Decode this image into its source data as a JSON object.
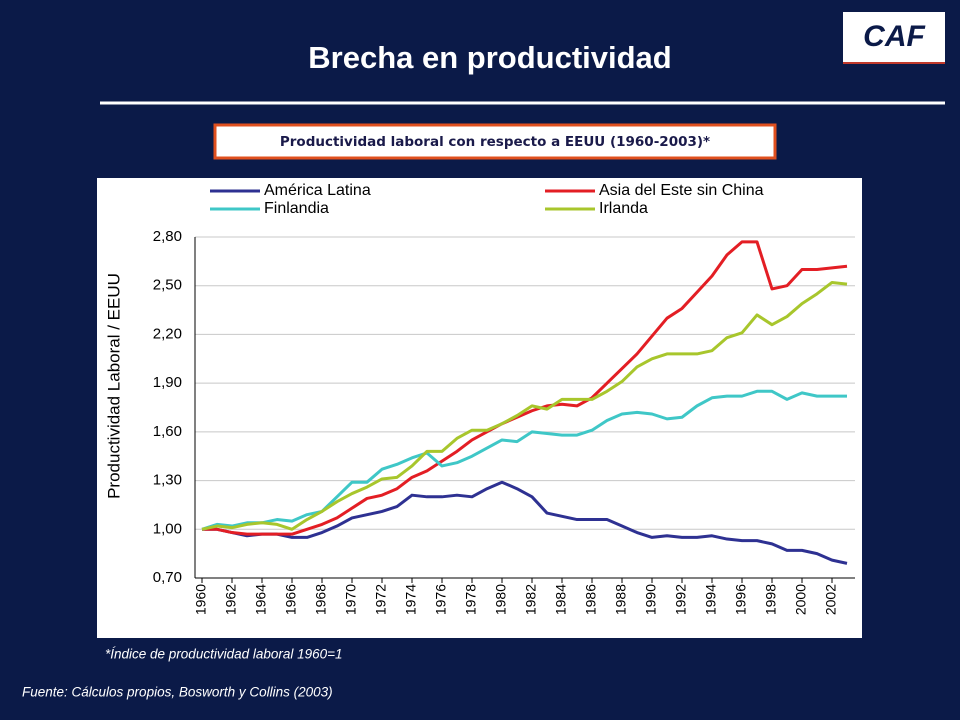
{
  "slide": {
    "title": "Brecha en productividad",
    "logo": "CAF",
    "note": "*Índice de productividad laboral 1960=1",
    "source": "Fuente: Cálculos propios, Bosworth y Collins (2003)"
  },
  "chart_data": {
    "type": "line",
    "title": "Productividad laboral con respecto a EEUU (1960-2003)*",
    "y_label": "Productividad Laboral / EEUU",
    "x": [
      1960,
      1961,
      1962,
      1963,
      1964,
      1965,
      1966,
      1967,
      1968,
      1969,
      1970,
      1971,
      1972,
      1973,
      1974,
      1975,
      1976,
      1977,
      1978,
      1979,
      1980,
      1981,
      1982,
      1983,
      1984,
      1985,
      1986,
      1987,
      1988,
      1989,
      1990,
      1991,
      1992,
      1993,
      1994,
      1995,
      1996,
      1997,
      1998,
      1999,
      2000,
      2001,
      2002,
      2003
    ],
    "xlim": [
      1960,
      2003
    ],
    "xticks": [
      1960,
      1962,
      1964,
      1966,
      1968,
      1970,
      1972,
      1974,
      1976,
      1978,
      1980,
      1982,
      1984,
      1986,
      1988,
      1990,
      1992,
      1994,
      1996,
      1998,
      2000,
      2002
    ],
    "ylim": [
      0.7,
      2.8
    ],
    "yticks": [
      {
        "value": 0.7,
        "label": "0,70"
      },
      {
        "value": 1.0,
        "label": "1,00"
      },
      {
        "value": 1.3,
        "label": "1,30"
      },
      {
        "value": 1.6,
        "label": "1,60"
      },
      {
        "value": 1.9,
        "label": "1,90"
      },
      {
        "value": 2.2,
        "label": "2,20"
      },
      {
        "value": 2.5,
        "label": "2,50"
      },
      {
        "value": 2.8,
        "label": "2,80"
      }
    ],
    "grid": true,
    "legend": "top",
    "series": [
      {
        "name": "América Latina",
        "color": "#2e3192",
        "values": [
          1.0,
          1.0,
          0.98,
          0.96,
          0.97,
          0.97,
          0.95,
          0.95,
          0.98,
          1.02,
          1.07,
          1.09,
          1.11,
          1.14,
          1.21,
          1.2,
          1.2,
          1.21,
          1.2,
          1.25,
          1.29,
          1.25,
          1.2,
          1.1,
          1.08,
          1.06,
          1.06,
          1.06,
          1.02,
          0.98,
          0.95,
          0.96,
          0.95,
          0.95,
          0.96,
          0.94,
          0.93,
          0.93,
          0.91,
          0.87,
          0.87,
          0.85,
          0.81,
          0.79
        ]
      },
      {
        "name": "Asia del Este sin China",
        "color": "#e31e24",
        "values": [
          1.0,
          1.0,
          0.98,
          0.97,
          0.97,
          0.97,
          0.97,
          1.0,
          1.03,
          1.07,
          1.13,
          1.19,
          1.21,
          1.25,
          1.32,
          1.36,
          1.42,
          1.48,
          1.55,
          1.6,
          1.65,
          1.69,
          1.73,
          1.76,
          1.77,
          1.76,
          1.81,
          1.9,
          1.99,
          2.08,
          2.19,
          2.3,
          2.36,
          2.46,
          2.56,
          2.69,
          2.77,
          2.77,
          2.48,
          2.5,
          2.6,
          2.6,
          2.61,
          2.62
        ]
      },
      {
        "name": "Finlandia",
        "color": "#3fc7c7",
        "values": [
          1.0,
          1.03,
          1.02,
          1.04,
          1.04,
          1.06,
          1.05,
          1.09,
          1.11,
          1.2,
          1.29,
          1.29,
          1.37,
          1.4,
          1.44,
          1.47,
          1.39,
          1.41,
          1.45,
          1.5,
          1.55,
          1.54,
          1.6,
          1.59,
          1.58,
          1.58,
          1.61,
          1.67,
          1.71,
          1.72,
          1.71,
          1.68,
          1.69,
          1.76,
          1.81,
          1.82,
          1.82,
          1.85,
          1.85,
          1.8,
          1.84,
          1.82,
          1.82,
          1.82
        ]
      },
      {
        "name": "Irlanda",
        "color": "#a8c62c",
        "values": [
          1.0,
          1.02,
          1.01,
          1.03,
          1.04,
          1.03,
          1.0,
          1.06,
          1.11,
          1.17,
          1.22,
          1.26,
          1.31,
          1.32,
          1.39,
          1.48,
          1.48,
          1.56,
          1.61,
          1.61,
          1.65,
          1.7,
          1.76,
          1.74,
          1.8,
          1.8,
          1.8,
          1.85,
          1.91,
          2.0,
          2.05,
          2.08,
          2.08,
          2.08,
          2.1,
          2.18,
          2.21,
          2.32,
          2.26,
          2.31,
          2.39,
          2.45,
          2.52,
          2.51
        ]
      }
    ]
  }
}
